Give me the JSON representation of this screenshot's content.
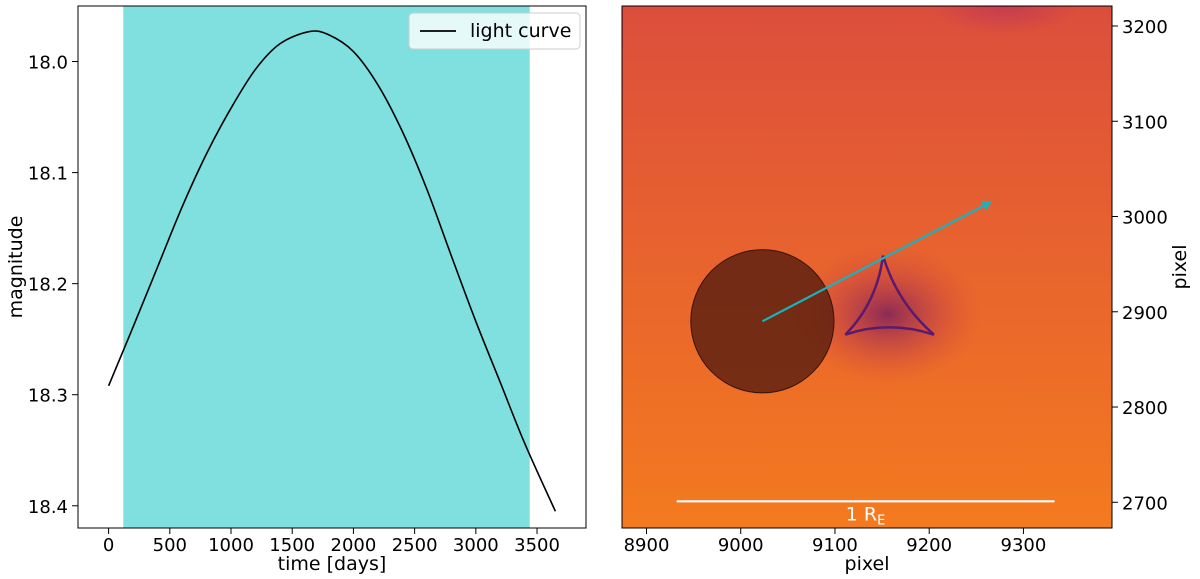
{
  "colors": {
    "shade": "#80dfdf",
    "curve": "#000000",
    "arrow": "#19b3be",
    "map_bg_top": "#dc4e3c",
    "map_bg_bottom": "#f47a1f",
    "caustic": "#5c1a6e",
    "source_disk": "#5a1e10",
    "scale_bar": "#ffffff"
  },
  "chart_data": [
    {
      "type": "line",
      "title": "",
      "xlabel": "time [days]",
      "ylabel": "magnitude",
      "xlim": [
        -250,
        3900
      ],
      "ylim": [
        18.42,
        17.95
      ],
      "y_inverted": true,
      "xticks": [
        0,
        500,
        1000,
        1500,
        2000,
        2500,
        3000,
        3500
      ],
      "xtick_labels": [
        "0",
        "500",
        "1000",
        "1500",
        "2000",
        "2500",
        "3000",
        "3500"
      ],
      "yticks": [
        18.0,
        18.1,
        18.2,
        18.3,
        18.4
      ],
      "ytick_labels": [
        "18.0",
        "18.1",
        "18.2",
        "18.3",
        "18.4"
      ],
      "shaded_span": [
        120,
        3440
      ],
      "legend": {
        "label": "light curve",
        "location": "top-right"
      },
      "series": [
        {
          "name": "light curve",
          "x": [
            0,
            200,
            400,
            600,
            800,
            1000,
            1200,
            1400,
            1640,
            1800,
            2000,
            2200,
            2400,
            2600,
            2800,
            3000,
            3200,
            3400,
            3650
          ],
          "y": [
            18.292,
            18.239,
            18.185,
            18.131,
            18.083,
            18.042,
            18.007,
            17.984,
            17.973,
            17.976,
            17.991,
            18.021,
            18.063,
            18.115,
            18.175,
            18.234,
            18.289,
            18.344,
            18.405
          ]
        }
      ]
    },
    {
      "type": "heatmap",
      "title": "",
      "xlabel": "pixel",
      "ylabel": "pixel",
      "xlim": [
        8874,
        9394
      ],
      "ylim": [
        2673,
        3221
      ],
      "xticks": [
        8900,
        9000,
        9100,
        9200,
        9300
      ],
      "xtick_labels": [
        "8900",
        "9000",
        "9100",
        "9200",
        "9300"
      ],
      "yticks": [
        2700,
        2800,
        2900,
        3000,
        3100,
        3200
      ],
      "ytick_labels": [
        "2700",
        "2800",
        "2900",
        "3000",
        "3100",
        "3200"
      ],
      "y_axis_side": "right",
      "source": {
        "x": 9023,
        "y": 2890,
        "radius": 76
      },
      "arrow": {
        "from": [
          9023,
          2890
        ],
        "to": [
          9265,
          3015
        ]
      },
      "caustic_cusps": [
        [
          9151,
          2959
        ],
        [
          9111,
          2876
        ],
        [
          9205,
          2876
        ]
      ],
      "scale_bar": {
        "from": 8932,
        "to": 9333,
        "y": 2701,
        "label": "1 R",
        "label_sub": "E"
      }
    }
  ]
}
